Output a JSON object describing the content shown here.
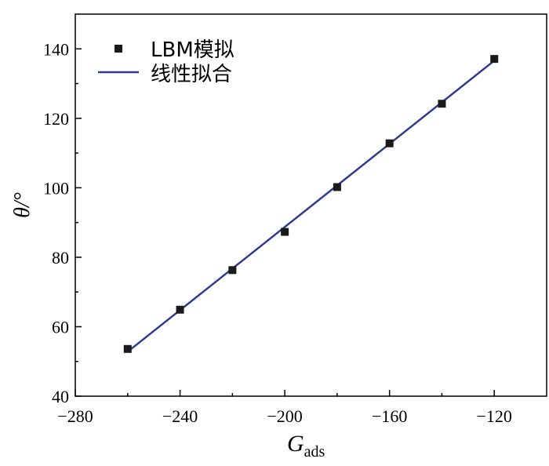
{
  "chart_data": {
    "type": "scatter",
    "xlabel": "G",
    "xlabel_sub": "ads",
    "ylabel": "θ/°",
    "xlim": [
      -280,
      -100
    ],
    "ylim": [
      40,
      150
    ],
    "xticks": [
      -280,
      -240,
      -200,
      -160,
      -120
    ],
    "xtick_labels": [
      "−280",
      "−240",
      "−200",
      "−160",
      "−120"
    ],
    "yticks": [
      40,
      60,
      80,
      100,
      120,
      140
    ],
    "ytick_labels": [
      "40",
      "60",
      "80",
      "100",
      "120",
      "140"
    ],
    "grid": false,
    "legend_position": "top-left",
    "series": [
      {
        "name": "LBM模拟",
        "kind": "markers",
        "marker": "square",
        "color": "#1a1a1a",
        "x": [
          -260,
          -240,
          -220,
          -200,
          -180,
          -160,
          -140,
          -120
        ],
        "y": [
          53.6,
          64.9,
          76.3,
          87.3,
          100.2,
          112.8,
          124.2,
          137.1
        ]
      },
      {
        "name": "线性拟合",
        "kind": "line",
        "color": "#2e3a8c",
        "x": [
          -260,
          -120
        ],
        "y": [
          52.8,
          136.6
        ]
      }
    ]
  }
}
